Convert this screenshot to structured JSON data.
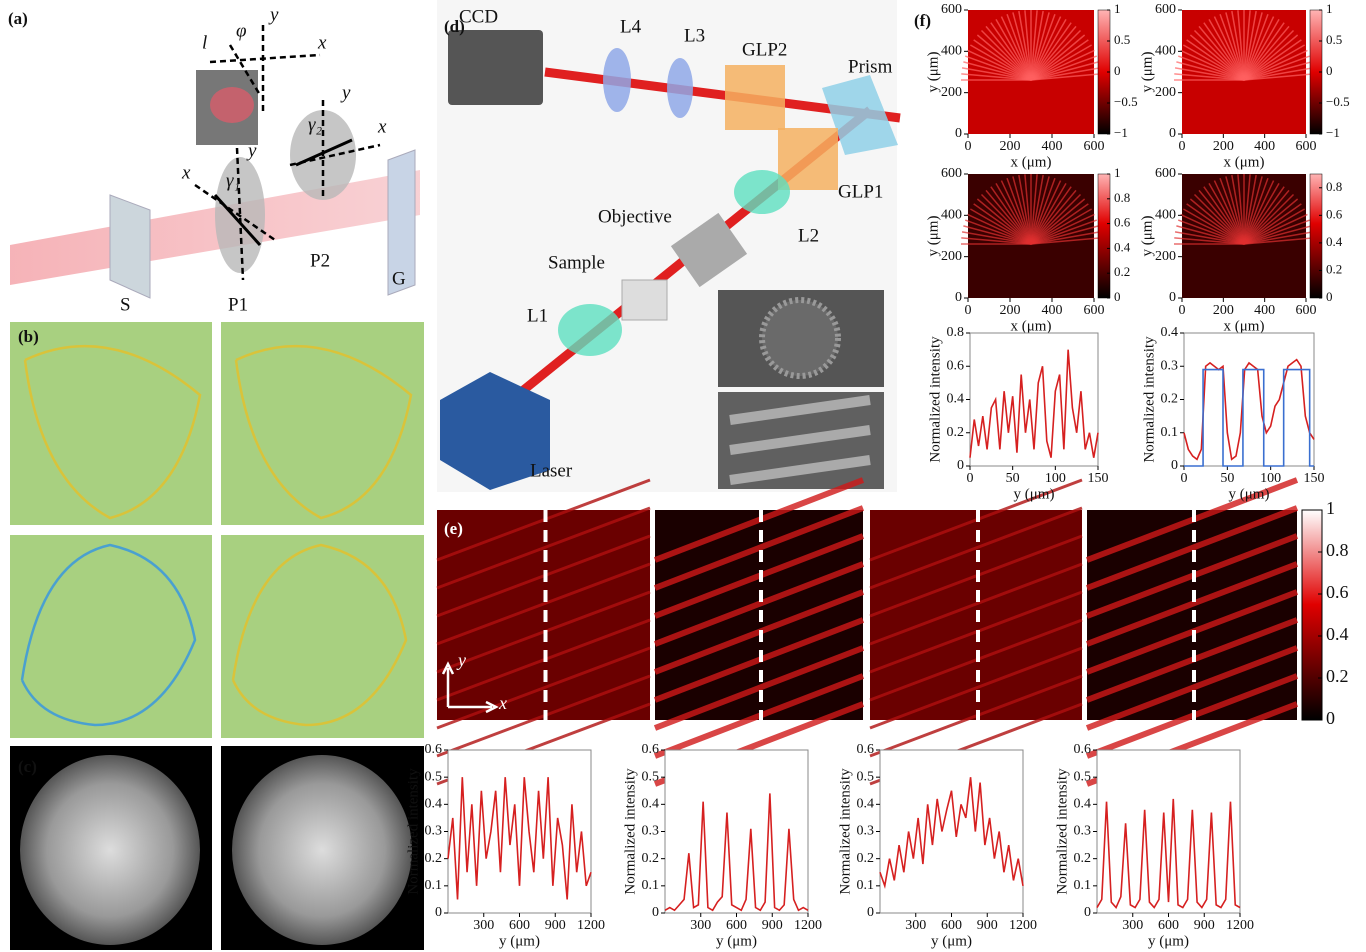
{
  "panels": [
    "(a)",
    "(b)",
    "(c)",
    "(d)",
    "(e)",
    "(f)"
  ],
  "diagram_a": {
    "labels": [
      "l",
      "φ",
      "y",
      "x",
      "y",
      "γ₂",
      "x",
      "x",
      "γ₁",
      "y",
      "S",
      "P1",
      "P2",
      "G"
    ]
  },
  "diagram_d": {
    "labels": [
      "CCD",
      "L4",
      "L3",
      "GLP2",
      "Prism",
      "GLP1",
      "Objective",
      "L2",
      "Sample",
      "L1",
      "Laser"
    ]
  },
  "panel_e": {
    "axis_labels": [
      "y",
      "x"
    ],
    "clim": [
      0,
      1
    ],
    "cticks": [
      0,
      0.2,
      0.4,
      0.6,
      0.8,
      1
    ]
  },
  "chart_data": [
    {
      "type": "heatmap",
      "xlabel": "x (μm)",
      "ylabel": "y (μm)",
      "xlim": [
        0,
        600
      ],
      "ylim": [
        0,
        600
      ],
      "xticks": [
        0,
        200,
        400,
        600
      ],
      "yticks": [
        0,
        200,
        400,
        600
      ],
      "clim": [
        -1,
        1
      ],
      "cticks": [
        {
          "value": -1,
          "label": "−1"
        },
        {
          "value": -0.5,
          "label": "−0.5"
        },
        0,
        0.5,
        1
      ]
    },
    {
      "type": "heatmap",
      "xlabel": "x (μm)",
      "ylabel": "y (μm)",
      "xlim": [
        0,
        600
      ],
      "ylim": [
        0,
        600
      ],
      "xticks": [
        0,
        200,
        400,
        600
      ],
      "yticks": [
        0,
        200,
        400,
        600
      ],
      "clim": [
        -1,
        1
      ],
      "cticks": [
        {
          "value": -1,
          "label": "−1"
        },
        {
          "value": -0.5,
          "label": "−0.5"
        },
        0,
        0.5,
        1
      ]
    },
    {
      "type": "heatmap",
      "xlabel": "x (μm)",
      "ylabel": "y (μm)",
      "xlim": [
        0,
        600
      ],
      "ylim": [
        0,
        600
      ],
      "xticks": [
        0,
        200,
        400,
        600
      ],
      "yticks": [
        0,
        200,
        400,
        600
      ],
      "clim": [
        0,
        1
      ],
      "cticks": [
        0,
        0.2,
        0.4,
        0.6,
        0.8,
        1
      ]
    },
    {
      "type": "heatmap",
      "xlabel": "x (μm)",
      "ylabel": "y (μm)",
      "xlim": [
        0,
        600
      ],
      "ylim": [
        0,
        600
      ],
      "xticks": [
        0,
        200,
        400,
        600
      ],
      "yticks": [
        0,
        200,
        400,
        600
      ],
      "clim": [
        0,
        0.9
      ],
      "cticks": [
        0,
        0.2,
        0.4,
        0.6,
        0.8
      ]
    },
    {
      "type": "line",
      "xlabel": "y (μm)",
      "ylabel": "Normalized intensity",
      "xlim": [
        0,
        150
      ],
      "ylim": [
        0,
        0.8
      ],
      "xticks": [
        0,
        50,
        100,
        150
      ],
      "yticks": [
        0,
        0.2,
        0.4,
        0.6,
        0.8
      ],
      "x": [
        0,
        5,
        10,
        15,
        20,
        25,
        30,
        35,
        40,
        45,
        50,
        55,
        60,
        65,
        70,
        75,
        80,
        85,
        90,
        95,
        100,
        105,
        110,
        115,
        120,
        125,
        130,
        135,
        140,
        145,
        150
      ],
      "series": [
        {
          "color": "#d62020",
          "values": [
            0.05,
            0.28,
            0.12,
            0.3,
            0.1,
            0.35,
            0.4,
            0.1,
            0.45,
            0.2,
            0.42,
            0.08,
            0.55,
            0.2,
            0.4,
            0.1,
            0.5,
            0.6,
            0.15,
            0.05,
            0.45,
            0.55,
            0.1,
            0.7,
            0.35,
            0.2,
            0.45,
            0.1,
            0.2,
            0.05,
            0.2
          ]
        }
      ]
    },
    {
      "type": "line",
      "xlabel": "y (μm)",
      "ylabel": "Normalized intensity",
      "xlim": [
        0,
        150
      ],
      "ylim": [
        0,
        0.4
      ],
      "xticks": [
        0,
        50,
        100,
        150
      ],
      "yticks": [
        0,
        0.1,
        0.2,
        0.3,
        0.4
      ],
      "series": [
        {
          "color": "#d62020",
          "x": [
            0,
            5,
            10,
            15,
            20,
            25,
            30,
            35,
            40,
            45,
            50,
            55,
            60,
            65,
            70,
            75,
            80,
            85,
            90,
            95,
            100,
            105,
            110,
            115,
            120,
            125,
            130,
            135,
            140,
            145,
            150
          ],
          "values": [
            0.1,
            0.05,
            0.03,
            0.02,
            0.05,
            0.3,
            0.31,
            0.3,
            0.29,
            0.3,
            0.1,
            0.02,
            0.03,
            0.1,
            0.29,
            0.31,
            0.3,
            0.29,
            0.15,
            0.1,
            0.12,
            0.18,
            0.2,
            0.25,
            0.3,
            0.31,
            0.32,
            0.3,
            0.15,
            0.1,
            0.08
          ]
        },
        {
          "color": "#3a6fd0",
          "x": [
            0,
            22,
            22,
            45,
            45,
            68,
            68,
            92,
            92,
            115,
            115,
            145,
            145,
            150
          ],
          "values": [
            0,
            0,
            0.29,
            0.29,
            0,
            0,
            0.29,
            0.29,
            0,
            0,
            0.29,
            0.29,
            0,
            0
          ]
        }
      ]
    },
    {
      "type": "line",
      "xlabel": "y (μm)",
      "ylabel": "Normalized intensity",
      "xlim": [
        0,
        1200
      ],
      "ylim": [
        0,
        0.6
      ],
      "xticks": [
        300,
        600,
        900,
        1200
      ],
      "yticks": [
        0,
        0.1,
        0.2,
        0.3,
        0.4,
        0.5,
        0.6
      ],
      "x": [
        0,
        40,
        80,
        120,
        160,
        200,
        240,
        280,
        320,
        360,
        400,
        440,
        480,
        520,
        560,
        600,
        640,
        680,
        720,
        760,
        800,
        840,
        880,
        920,
        960,
        1000,
        1040,
        1080,
        1120,
        1160,
        1200
      ],
      "series": [
        {
          "color": "#d62020",
          "values": [
            0.2,
            0.35,
            0.05,
            0.5,
            0.15,
            0.4,
            0.1,
            0.45,
            0.2,
            0.3,
            0.45,
            0.15,
            0.5,
            0.25,
            0.4,
            0.1,
            0.5,
            0.3,
            0.15,
            0.45,
            0.2,
            0.5,
            0.1,
            0.35,
            0.25,
            0.05,
            0.4,
            0.15,
            0.3,
            0.1,
            0.15
          ]
        }
      ]
    },
    {
      "type": "line",
      "xlabel": "y (μm)",
      "ylabel": "Normalized intensity",
      "xlim": [
        0,
        1200
      ],
      "ylim": [
        0,
        0.6
      ],
      "xticks": [
        300,
        600,
        900,
        1200
      ],
      "yticks": [
        0,
        0.1,
        0.2,
        0.3,
        0.4,
        0.5,
        0.6
      ],
      "x": [
        0,
        40,
        80,
        120,
        160,
        200,
        240,
        280,
        320,
        360,
        400,
        440,
        480,
        520,
        560,
        600,
        640,
        680,
        720,
        760,
        800,
        840,
        880,
        920,
        960,
        1000,
        1040,
        1080,
        1120,
        1160,
        1200
      ],
      "series": [
        {
          "color": "#d62020",
          "values": [
            0.01,
            0.02,
            0.01,
            0.03,
            0.05,
            0.22,
            0.02,
            0.03,
            0.41,
            0.02,
            0.01,
            0.04,
            0.06,
            0.37,
            0.03,
            0.02,
            0.01,
            0.05,
            0.31,
            0.02,
            0.01,
            0.04,
            0.44,
            0.02,
            0.01,
            0.03,
            0.31,
            0.05,
            0.01,
            0.02,
            0.01
          ]
        }
      ]
    },
    {
      "type": "line",
      "xlabel": "y (μm)",
      "ylabel": "Normalized intensity",
      "xlim": [
        0,
        1200
      ],
      "ylim": [
        0,
        0.6
      ],
      "xticks": [
        300,
        600,
        900,
        1200
      ],
      "yticks": [
        0,
        0.1,
        0.2,
        0.3,
        0.4,
        0.5,
        0.6
      ],
      "x": [
        0,
        40,
        80,
        120,
        160,
        200,
        240,
        280,
        320,
        360,
        400,
        440,
        480,
        520,
        560,
        600,
        640,
        680,
        720,
        760,
        800,
        840,
        880,
        920,
        960,
        1000,
        1040,
        1080,
        1120,
        1160,
        1200
      ],
      "series": [
        {
          "color": "#d62020",
          "values": [
            0.15,
            0.1,
            0.2,
            0.12,
            0.25,
            0.15,
            0.3,
            0.2,
            0.35,
            0.18,
            0.4,
            0.25,
            0.42,
            0.3,
            0.38,
            0.45,
            0.28,
            0.4,
            0.35,
            0.5,
            0.3,
            0.48,
            0.25,
            0.35,
            0.2,
            0.3,
            0.15,
            0.25,
            0.12,
            0.2,
            0.1
          ]
        }
      ]
    },
    {
      "type": "line",
      "xlabel": "y (μm)",
      "ylabel": "Normalized intensity",
      "xlim": [
        0,
        1200
      ],
      "ylim": [
        0,
        0.6
      ],
      "xticks": [
        300,
        600,
        900,
        1200
      ],
      "yticks": [
        0,
        0.1,
        0.2,
        0.3,
        0.4,
        0.5,
        0.6
      ],
      "x": [
        0,
        40,
        80,
        120,
        160,
        200,
        240,
        280,
        320,
        360,
        400,
        440,
        480,
        520,
        560,
        600,
        640,
        680,
        720,
        760,
        800,
        840,
        880,
        920,
        960,
        1000,
        1040,
        1080,
        1120,
        1160,
        1200
      ],
      "series": [
        {
          "color": "#d62020",
          "values": [
            0.02,
            0.05,
            0.41,
            0.04,
            0.02,
            0.06,
            0.33,
            0.03,
            0.02,
            0.05,
            0.38,
            0.04,
            0.02,
            0.05,
            0.37,
            0.04,
            0.42,
            0.03,
            0.02,
            0.05,
            0.38,
            0.04,
            0.02,
            0.05,
            0.37,
            0.03,
            0.02,
            0.05,
            0.41,
            0.03,
            0.02
          ]
        }
      ]
    }
  ]
}
